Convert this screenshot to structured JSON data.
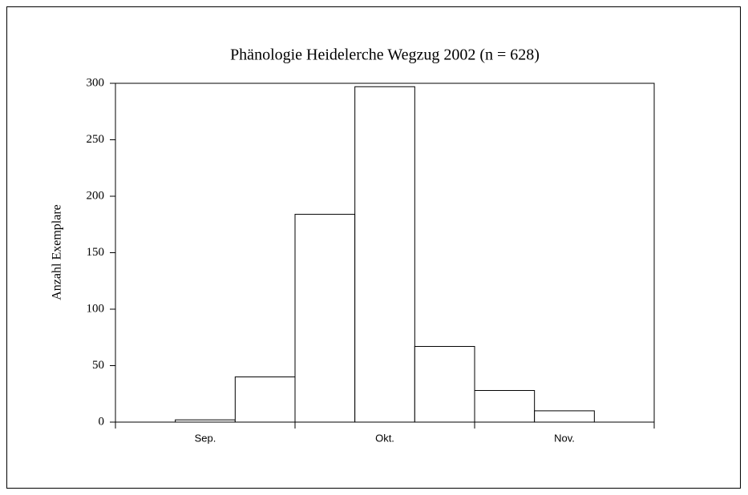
{
  "chart_data": {
    "type": "bar",
    "title": "Phänologie Heidelerche Wegzug 2002 (n = 628)",
    "y_label": "Anzahl Exemplare",
    "categories": [
      null,
      "Sep.",
      null,
      null,
      "Okt.",
      null,
      null,
      "Nov.",
      null
    ],
    "values": [
      0,
      2,
      40,
      184,
      297,
      67,
      28,
      10,
      0
    ],
    "color": "#ffffff",
    "ylim": [
      0,
      300
    ],
    "yticks": [
      0,
      50,
      100,
      150,
      200,
      250,
      300
    ],
    "grid": false
  }
}
